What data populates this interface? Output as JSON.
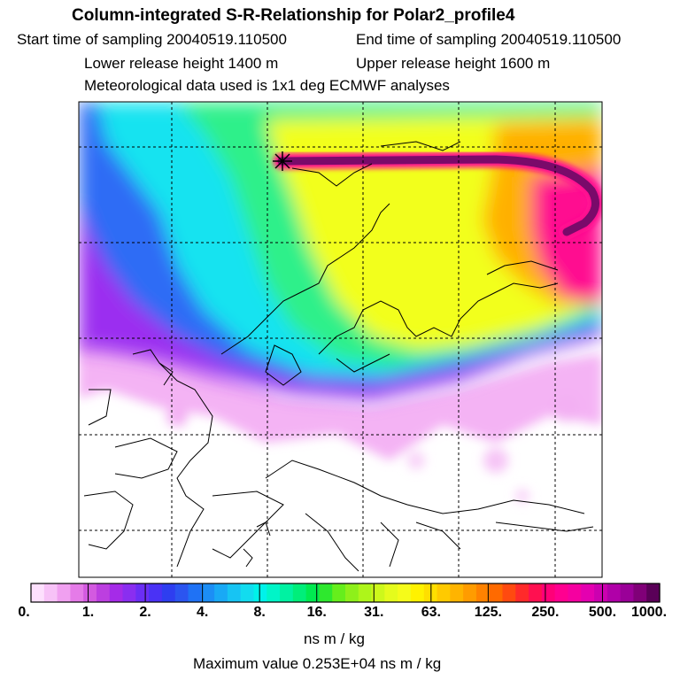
{
  "header": {
    "title": "Column-integrated S-R-Relationship for Polar2_profile4",
    "start_time": "Start time of sampling 20040519.110500",
    "end_time": "End time of sampling 20040519.110500",
    "lower_height": "Lower release height 1400 m",
    "upper_height": "Upper release height 1600 m",
    "met_data": "Meteorological data used is 1x1 deg ECMWF analyses"
  },
  "colorbar": {
    "ticks": [
      "0.",
      "1.",
      "2.",
      "4.",
      "8.",
      "16.",
      "31.",
      "63.",
      "125.",
      "250.",
      "500.",
      "1000."
    ],
    "colors": [
      "#fde0fd",
      "#f7c2f7",
      "#f0a0f0",
      "#e57be8",
      "#d35ae0",
      "#bc3fe0",
      "#a52be8",
      "#8a2ef0",
      "#6b2ef5",
      "#4a32f5",
      "#2e3ef0",
      "#2b55f0",
      "#1f72f5",
      "#1c8ef5",
      "#19a9f5",
      "#17c4f3",
      "#12dcef",
      "#00f2ea",
      "#00f5c8",
      "#00f2a2",
      "#00ee7a",
      "#00ea50",
      "#2ee82e",
      "#66ee1c",
      "#8ef01a",
      "#aef51a",
      "#cdf81b",
      "#e5fb1c",
      "#f5fb1a",
      "#fff200",
      "#ffdf00",
      "#ffca00",
      "#ffb400",
      "#ff9c00",
      "#ff8200",
      "#ff6a00",
      "#ff4a10",
      "#ff2a2a",
      "#ff1050",
      "#ff0078",
      "#ff0090",
      "#f500a0",
      "#e400b0",
      "#cc00b0",
      "#b000a8",
      "#9a0098",
      "#800078",
      "#5a0058"
    ],
    "unit": "ns m / kg",
    "max_value": "Maximum value  0.253E+04 ns m / kg"
  },
  "map": {
    "release_marker": "release-point-star",
    "colors": {
      "outer_purple": "#9b2ef0",
      "deep_purple": "#7a1fe8",
      "blue": "#2e6cf5",
      "cyan": "#18e3f0",
      "green": "#2ef08a",
      "yellow": "#f2ff1a",
      "orange": "#ffb000",
      "magenta": "#ff1090",
      "plume": "#7a0a6a"
    }
  }
}
